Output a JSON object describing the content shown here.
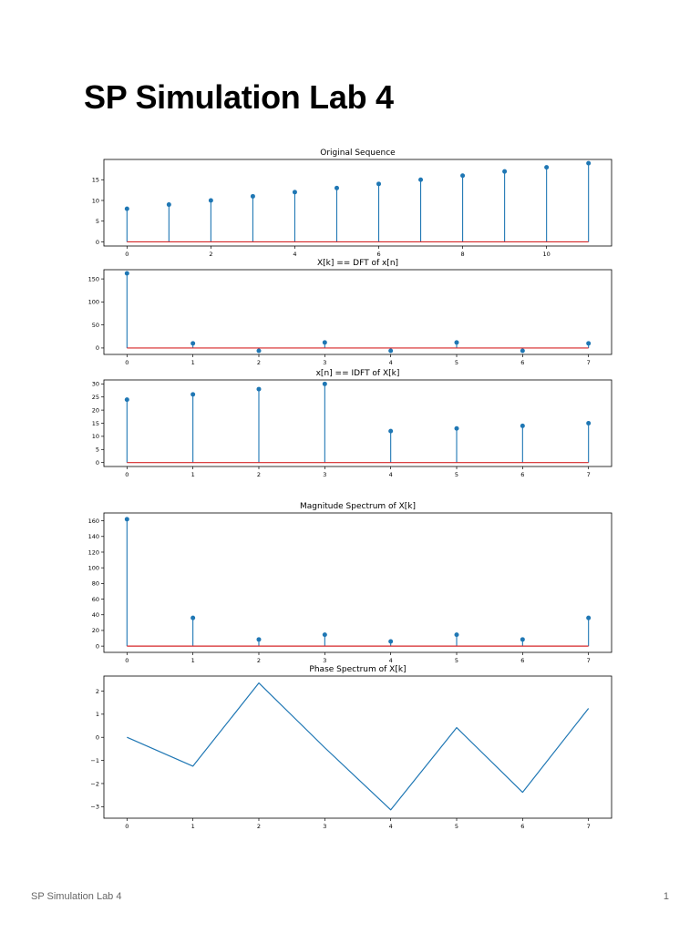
{
  "page": {
    "title": "SP Simulation Lab 4"
  },
  "footer": {
    "left": "SP Simulation Lab 4",
    "page_number": "1"
  },
  "colors": {
    "stem": "#1f77b4",
    "baseline": "#d62728",
    "axes": "#000000"
  },
  "chart_data": [
    {
      "type": "stem",
      "title": "Original Sequence",
      "x": [
        0,
        1,
        2,
        3,
        4,
        5,
        6,
        7,
        8,
        9,
        10,
        11
      ],
      "y": [
        8,
        9,
        10,
        11,
        12,
        13,
        14,
        15,
        16,
        17,
        18,
        19
      ],
      "xlim": [
        -0.55,
        11.55
      ],
      "ylim": [
        -1,
        19.9
      ],
      "xticks": [
        0,
        2,
        4,
        6,
        8,
        10
      ],
      "yticks": [
        0,
        5,
        10,
        15
      ]
    },
    {
      "type": "stem",
      "title": "X[k] == DFT of x[n]",
      "x": [
        0,
        1,
        2,
        3,
        4,
        5,
        6,
        7
      ],
      "y": [
        162,
        10,
        -6,
        12,
        -6,
        12,
        -6,
        10
      ],
      "xlim": [
        -0.35,
        7.35
      ],
      "ylim": [
        -14,
        170
      ],
      "xticks": [
        0,
        1,
        2,
        3,
        4,
        5,
        6,
        7
      ],
      "yticks": [
        0,
        50,
        100,
        150
      ]
    },
    {
      "type": "stem",
      "title": "x[n] == IDFT of X[k]",
      "x": [
        0,
        1,
        2,
        3,
        4,
        5,
        6,
        7
      ],
      "y": [
        24,
        26,
        28,
        30,
        12,
        13,
        14,
        15
      ],
      "xlim": [
        -0.35,
        7.35
      ],
      "ylim": [
        -1.5,
        31.5
      ],
      "xticks": [
        0,
        1,
        2,
        3,
        4,
        5,
        6,
        7
      ],
      "yticks": [
        0,
        5,
        10,
        15,
        20,
        25,
        30
      ]
    },
    {
      "type": "stem",
      "title": "Magnitude Spectrum of X[k]",
      "x": [
        0,
        1,
        2,
        3,
        4,
        5,
        6,
        7
      ],
      "y": [
        162,
        36,
        8.5,
        14.5,
        6,
        14.5,
        8.5,
        36
      ],
      "xlim": [
        -0.35,
        7.35
      ],
      "ylim": [
        -8,
        170
      ],
      "xticks": [
        0,
        1,
        2,
        3,
        4,
        5,
        6,
        7
      ],
      "yticks": [
        0,
        20,
        40,
        60,
        80,
        100,
        120,
        140,
        160
      ]
    },
    {
      "type": "line",
      "title": "Phase Spectrum of X[k]",
      "x": [
        0,
        1,
        2,
        3,
        4,
        5,
        6,
        7
      ],
      "y": [
        0,
        -1.25,
        2.35,
        -0.45,
        -3.14,
        0.42,
        -2.38,
        1.25
      ],
      "xlim": [
        -0.35,
        7.35
      ],
      "ylim": [
        -3.5,
        2.65
      ],
      "xticks": [
        0,
        1,
        2,
        3,
        4,
        5,
        6,
        7
      ],
      "yticks": [
        -3,
        -2,
        -1,
        0,
        1,
        2
      ],
      "ytick_labels": [
        "−3",
        "−2",
        "−1",
        "0",
        "1",
        "2"
      ]
    }
  ]
}
